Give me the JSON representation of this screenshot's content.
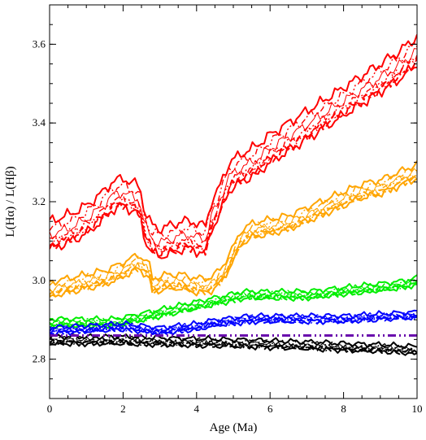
{
  "chart_data": {
    "type": "line",
    "title": "",
    "xlabel": "Age (Ma)",
    "ylabel": "L(Hα) / L(Hβ)",
    "xlim": [
      0,
      10
    ],
    "ylim": [
      2.7,
      3.7
    ],
    "x_ticks": [
      "0",
      "2",
      "4",
      "6",
      "8",
      "10"
    ],
    "y_ticks": [
      "2.8",
      "3.0",
      "3.2",
      "3.4",
      "3.6"
    ],
    "grid": false,
    "legend": "none",
    "reference_line": {
      "y": 2.86,
      "color": "#6a0dad",
      "style": "dash-dot-dot"
    },
    "series": [
      {
        "color": "#ff0000",
        "band": [
          0.02,
          0.05
        ],
        "x": [
          0,
          0.3,
          0.6,
          1.0,
          1.4,
          1.7,
          2.0,
          2.2,
          2.45,
          2.6,
          2.8,
          3.0,
          3.3,
          3.6,
          3.9,
          4.1,
          4.25,
          4.4,
          4.6,
          4.75,
          4.9,
          5.2,
          5.6,
          6.0,
          6.5,
          7.0,
          7.5,
          8.0,
          8.5,
          9.0,
          9.5,
          10.0
        ],
        "center": [
          3.1,
          3.11,
          3.12,
          3.14,
          3.17,
          3.2,
          3.21,
          3.2,
          3.19,
          3.12,
          3.09,
          3.08,
          3.09,
          3.1,
          3.1,
          3.09,
          3.09,
          3.15,
          3.18,
          3.22,
          3.25,
          3.27,
          3.29,
          3.32,
          3.35,
          3.38,
          3.41,
          3.44,
          3.47,
          3.5,
          3.53,
          3.57
        ]
      },
      {
        "color": "#ffa500",
        "band": [
          0.01,
          0.025
        ],
        "x": [
          0,
          0.5,
          1.0,
          1.5,
          2.0,
          2.4,
          2.7,
          2.8,
          3.2,
          3.6,
          4.0,
          4.3,
          4.5,
          4.7,
          5.0,
          5.2,
          5.5,
          6.0,
          6.5,
          7.0,
          7.5,
          8.0,
          8.5,
          9.0,
          9.5,
          10.0
        ],
        "center": [
          2.97,
          2.98,
          2.99,
          3.0,
          3.02,
          3.04,
          3.02,
          2.98,
          2.99,
          2.99,
          2.98,
          2.98,
          2.99,
          3.01,
          3.06,
          3.1,
          3.12,
          3.13,
          3.14,
          3.16,
          3.18,
          3.2,
          3.22,
          3.23,
          3.25,
          3.27
        ]
      },
      {
        "color": "#00ee00",
        "band": [
          0.005,
          0.012
        ],
        "x": [
          0,
          1.0,
          1.8,
          2.3,
          2.8,
          3.3,
          3.8,
          4.3,
          4.8,
          5.3,
          6.0,
          7.0,
          7.5,
          8.0,
          8.5,
          9.0,
          9.5,
          10.0
        ],
        "center": [
          2.89,
          2.89,
          2.89,
          2.9,
          2.91,
          2.92,
          2.93,
          2.94,
          2.95,
          2.96,
          2.96,
          2.96,
          2.965,
          2.97,
          2.975,
          2.98,
          2.985,
          2.995
        ]
      },
      {
        "color": "#0000ff",
        "band": [
          0.004,
          0.01
        ],
        "x": [
          0,
          1.0,
          2.0,
          3.0,
          3.5,
          4.0,
          4.5,
          5.0,
          5.5,
          6.0,
          7.0,
          8.0,
          9.0,
          10.0
        ],
        "center": [
          2.87,
          2.875,
          2.88,
          2.87,
          2.875,
          2.88,
          2.89,
          2.895,
          2.9,
          2.9,
          2.9,
          2.9,
          2.905,
          2.91
        ]
      },
      {
        "color": "#000000",
        "band": [
          0.005,
          0.012
        ],
        "x": [
          0,
          1.0,
          2.0,
          3.0,
          4.0,
          5.0,
          6.0,
          7.0,
          8.0,
          9.0,
          10.0
        ],
        "center": [
          2.845,
          2.845,
          2.845,
          2.842,
          2.84,
          2.838,
          2.835,
          2.832,
          2.828,
          2.825,
          2.82
        ]
      }
    ]
  }
}
